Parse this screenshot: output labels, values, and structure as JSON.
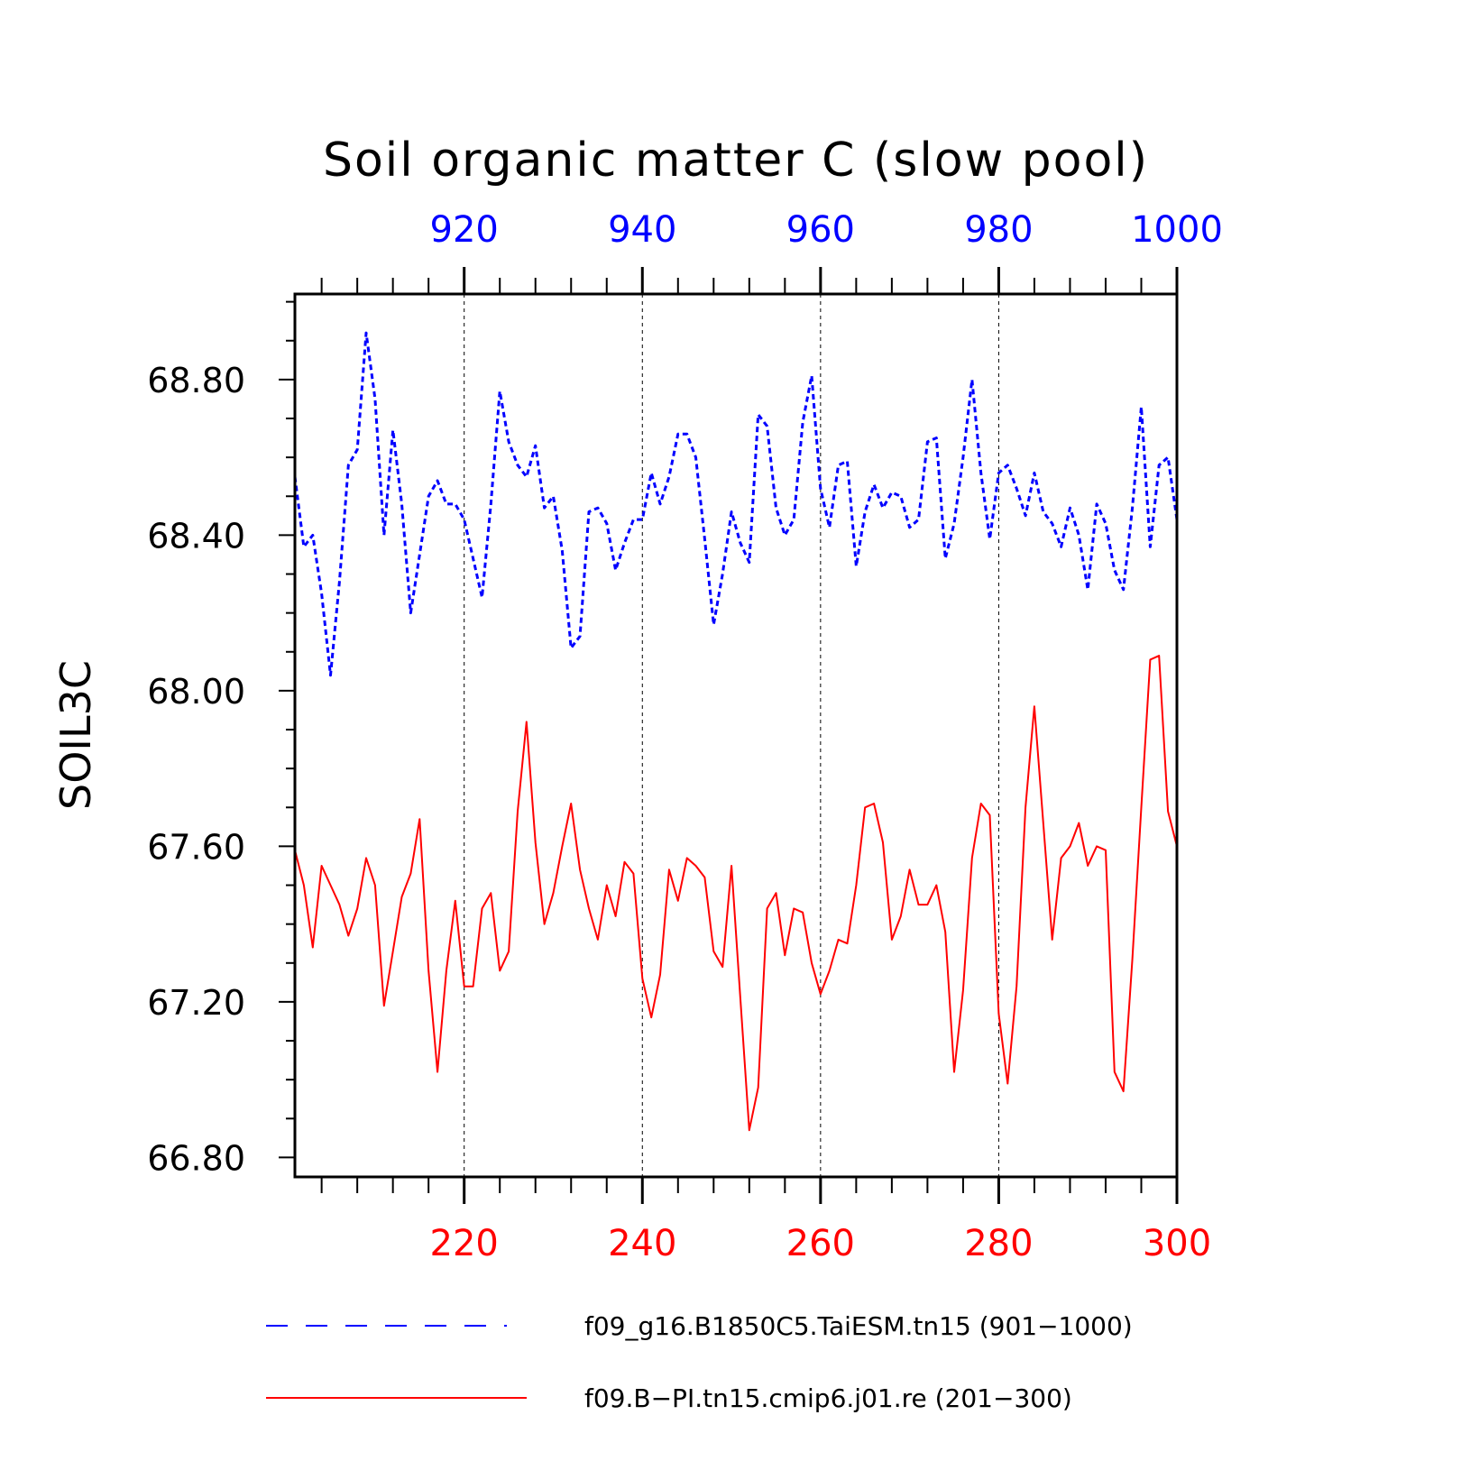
{
  "chart_data": {
    "type": "line",
    "title": "Soil organic matter C (slow pool)",
    "ylabel": "SOIL3C",
    "ylim": [
      66.75,
      69.02
    ],
    "yticks": [
      66.8,
      67.2,
      67.6,
      68.0,
      68.4,
      68.8
    ],
    "ytick_labels": [
      "66.80",
      "67.20",
      "67.60",
      "68.00",
      "68.40",
      "68.80"
    ],
    "grid": "vertical dashed at major ticks",
    "legend_position": "bottom",
    "colors": {
      "blue": "#0000ff",
      "red": "#ff0000"
    },
    "top_axis": {
      "range": [
        901,
        1000
      ],
      "ticks": [
        920,
        940,
        960,
        980,
        1000
      ],
      "tick_labels": [
        "920",
        "940",
        "960",
        "980",
        "1000"
      ]
    },
    "bottom_axis": {
      "range": [
        201,
        300
      ],
      "ticks": [
        220,
        240,
        260,
        280,
        300
      ],
      "tick_labels": [
        "220",
        "240",
        "260",
        "280",
        "300"
      ]
    },
    "series": [
      {
        "name": "f09_g16.B1850C5.TaiESM.tn15 (901−1000)",
        "color": "#0000ff",
        "style": "dashed",
        "axis": "top",
        "x_start": 901,
        "values": [
          68.55,
          68.37,
          68.4,
          68.25,
          68.04,
          68.28,
          68.58,
          68.62,
          68.92,
          68.75,
          68.4,
          68.67,
          68.48,
          68.2,
          68.35,
          68.5,
          68.54,
          68.48,
          68.48,
          68.44,
          68.34,
          68.24,
          68.48,
          68.77,
          68.64,
          68.58,
          68.55,
          68.63,
          68.47,
          68.5,
          68.36,
          68.11,
          68.14,
          68.46,
          68.47,
          68.43,
          68.31,
          68.38,
          68.44,
          68.44,
          68.56,
          68.48,
          68.55,
          68.66,
          68.66,
          68.6,
          68.39,
          68.17,
          68.3,
          68.46,
          68.38,
          68.33,
          68.71,
          68.68,
          68.47,
          68.4,
          68.44,
          68.69,
          68.81,
          68.52,
          68.42,
          68.58,
          68.59,
          68.32,
          68.46,
          68.53,
          68.47,
          68.51,
          68.5,
          68.42,
          68.44,
          68.64,
          68.65,
          68.34,
          68.43,
          68.6,
          68.8,
          68.56,
          68.39,
          68.56,
          68.58,
          68.52,
          68.45,
          68.56,
          68.46,
          68.43,
          68.37,
          68.47,
          68.4,
          68.26,
          68.48,
          68.43,
          68.31,
          68.26,
          68.47,
          68.73,
          68.37,
          68.58,
          68.6,
          68.44
        ]
      },
      {
        "name": "f09.B−PI.tn15.cmip6.j01.re (201−300)",
        "color": "#ff0000",
        "style": "solid",
        "axis": "bottom",
        "x_start": 201,
        "values": [
          67.59,
          67.5,
          67.34,
          67.55,
          67.5,
          67.45,
          67.37,
          67.44,
          67.57,
          67.5,
          67.19,
          67.33,
          67.47,
          67.53,
          67.67,
          67.28,
          67.02,
          67.28,
          67.46,
          67.24,
          67.24,
          67.44,
          67.48,
          67.28,
          67.33,
          67.69,
          67.92,
          67.61,
          67.4,
          67.48,
          67.6,
          67.71,
          67.54,
          67.44,
          67.36,
          67.5,
          67.42,
          67.56,
          67.53,
          67.26,
          67.16,
          67.27,
          67.54,
          67.46,
          67.57,
          67.55,
          67.52,
          67.33,
          67.29,
          67.55,
          67.21,
          66.87,
          66.98,
          67.44,
          67.48,
          67.32,
          67.44,
          67.43,
          67.3,
          67.22,
          67.28,
          67.36,
          67.35,
          67.5,
          67.7,
          67.71,
          67.61,
          67.36,
          67.42,
          67.54,
          67.45,
          67.45,
          67.5,
          67.38,
          67.02,
          67.23,
          67.57,
          67.71,
          67.68,
          67.17,
          66.99,
          67.24,
          67.7,
          67.96,
          67.66,
          67.36,
          67.57,
          67.6,
          67.66,
          67.55,
          67.6,
          67.59,
          67.02,
          66.97,
          67.31,
          67.7,
          68.08,
          68.09,
          67.69,
          67.6
        ]
      }
    ]
  }
}
